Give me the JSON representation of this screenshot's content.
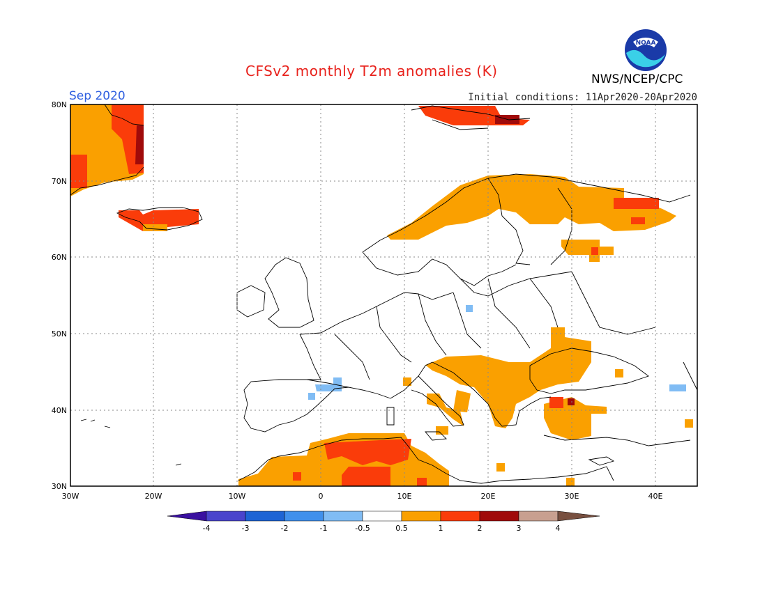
{
  "header": {
    "title": "CFSv2 monthly T2m anomalies (K)",
    "month": "Sep 2020",
    "initial_conditions": "Initial conditions: 11Apr2020-20Apr2020",
    "agency": "NWS/NCEP/CPC",
    "logo_text": "NOAA"
  },
  "map": {
    "lon_range": [
      -30,
      45
    ],
    "lat_range": [
      30,
      80
    ],
    "lat_labels": [
      "80N",
      "70N",
      "60N",
      "50N",
      "40N",
      "30N"
    ],
    "lon_labels": [
      "30W",
      "20W",
      "10W",
      "0",
      "10E",
      "20E",
      "30E",
      "40E"
    ],
    "grid_lines": "dotted",
    "anomaly_regions": [
      {
        "area": "Greenland",
        "category": "1 to 2"
      },
      {
        "area": "Iceland",
        "category": "1 to 2"
      },
      {
        "area": "Svalbard",
        "category": "1 to 2"
      },
      {
        "area": "Scandinavia",
        "category": "0.5 to 1"
      },
      {
        "area": "Northwest Russia",
        "category": "0.5 to 1"
      },
      {
        "area": "Balkans",
        "category": "0.5 to 1"
      },
      {
        "area": "Turkey",
        "category": "0.5 to 1"
      },
      {
        "area": "North Africa",
        "category": "1 to 2"
      },
      {
        "area": "Iberia",
        "category": "-1 to -0.5"
      },
      {
        "area": "Poland",
        "category": "-1 to -0.5"
      }
    ]
  },
  "colorbar": {
    "labels": [
      "-4",
      "-3",
      "-2",
      "-1",
      "-0.5",
      "0.5",
      "1",
      "2",
      "3",
      "4"
    ],
    "colors": [
      "#3a10a0",
      "#4a44cc",
      "#1e64d4",
      "#4090ec",
      "#80bcf4",
      "#ffffff",
      "#faa000",
      "#fa3c0a",
      "#a00a0a",
      "#c8a090",
      "#785040"
    ]
  }
}
